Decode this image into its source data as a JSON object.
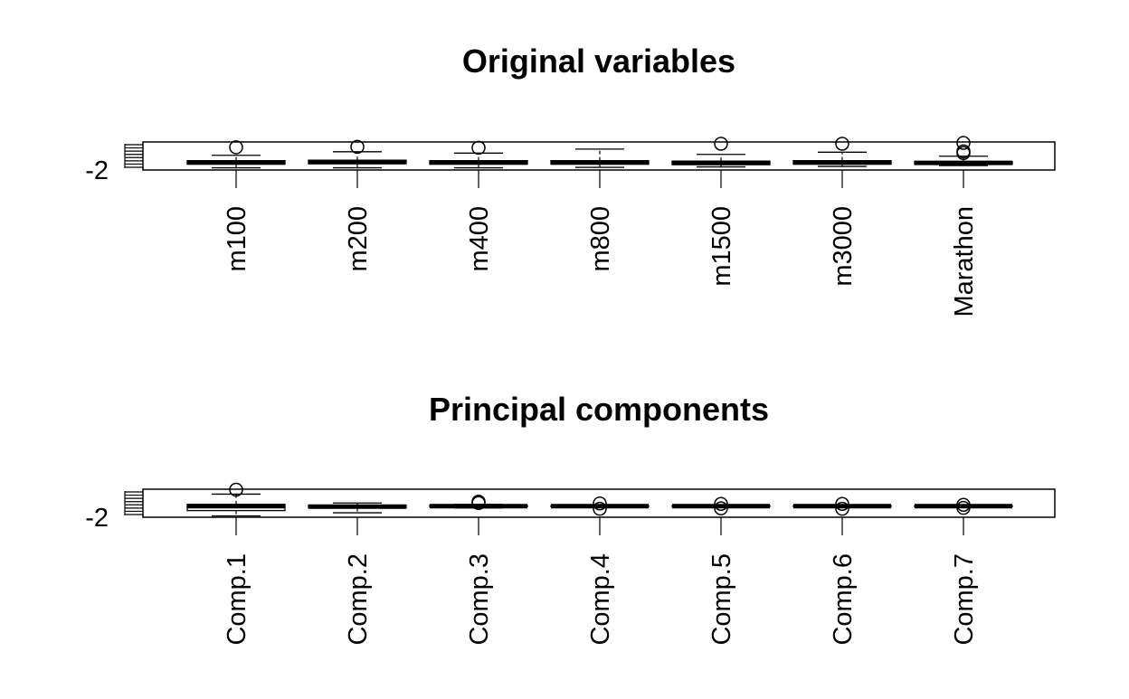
{
  "chart_data": [
    {
      "type": "box",
      "title": "Original variables",
      "ytick_labels": [
        "-2"
      ],
      "categories": [
        "m100",
        "m200",
        "m400",
        "m800",
        "m1500",
        "m3000",
        "Marathon"
      ],
      "ylim": [
        -2.3,
        4.0
      ],
      "boxes": [
        {
          "low": -1.8,
          "q1": -1.0,
          "median": -0.6,
          "q3": -0.2,
          "high": 1.0,
          "outliers": [
            2.8
          ]
        },
        {
          "low": -1.8,
          "q1": -0.9,
          "median": -0.5,
          "q3": -0.1,
          "high": 1.8,
          "outliers": [
            2.9
          ]
        },
        {
          "low": -1.8,
          "q1": -1.0,
          "median": -0.6,
          "q3": -0.2,
          "high": 1.5,
          "outliers": [
            2.7
          ]
        },
        {
          "low": -1.7,
          "q1": -1.0,
          "median": -0.6,
          "q3": -0.2,
          "high": 2.4,
          "outliers": []
        },
        {
          "low": -1.6,
          "q1": -1.1,
          "median": -0.7,
          "q3": -0.3,
          "high": 1.2,
          "outliers": [
            3.6
          ]
        },
        {
          "low": -1.5,
          "q1": -1.0,
          "median": -0.6,
          "q3": -0.2,
          "high": 1.7,
          "outliers": [
            3.6
          ]
        },
        {
          "low": -1.3,
          "q1": -1.0,
          "median": -0.7,
          "q3": -0.4,
          "high": 0.8,
          "outliers": [
            1.5,
            1.9,
            3.8
          ]
        }
      ]
    },
    {
      "type": "box",
      "title": "Principal components",
      "ytick_labels": [
        "-2"
      ],
      "categories": [
        "Comp.1",
        "Comp.2",
        "Comp.3",
        "Comp.4",
        "Comp.5",
        "Comp.6",
        "Comp.7"
      ],
      "ylim": [
        -2.3,
        4.0
      ],
      "boxes": [
        {
          "low": -2.0,
          "q1": -0.8,
          "median": 0.2,
          "q3": 0.6,
          "high": 2.9,
          "outliers": [
            3.9
          ]
        },
        {
          "low": -1.3,
          "q1": -0.2,
          "median": 0.1,
          "q3": 0.4,
          "high": 0.9,
          "outliers": []
        },
        {
          "low": -0.2,
          "q1": 0.05,
          "median": 0.2,
          "q3": 0.35,
          "high": 0.6,
          "outliers": [
            0.9,
            1.2
          ]
        },
        {
          "low": 0.0,
          "q1": 0.1,
          "median": 0.2,
          "q3": 0.3,
          "high": 0.4,
          "outliers": [
            -0.4,
            0.8
          ]
        },
        {
          "low": 0.05,
          "q1": 0.1,
          "median": 0.2,
          "q3": 0.3,
          "high": 0.35,
          "outliers": [
            -0.3,
            0.7
          ]
        },
        {
          "low": 0.05,
          "q1": 0.1,
          "median": 0.2,
          "q3": 0.3,
          "high": 0.35,
          "outliers": [
            -0.4,
            0.7
          ]
        },
        {
          "low": 0.05,
          "q1": 0.1,
          "median": 0.2,
          "q3": 0.3,
          "high": 0.35,
          "outliers": [
            -0.2,
            0.5
          ]
        }
      ]
    }
  ]
}
